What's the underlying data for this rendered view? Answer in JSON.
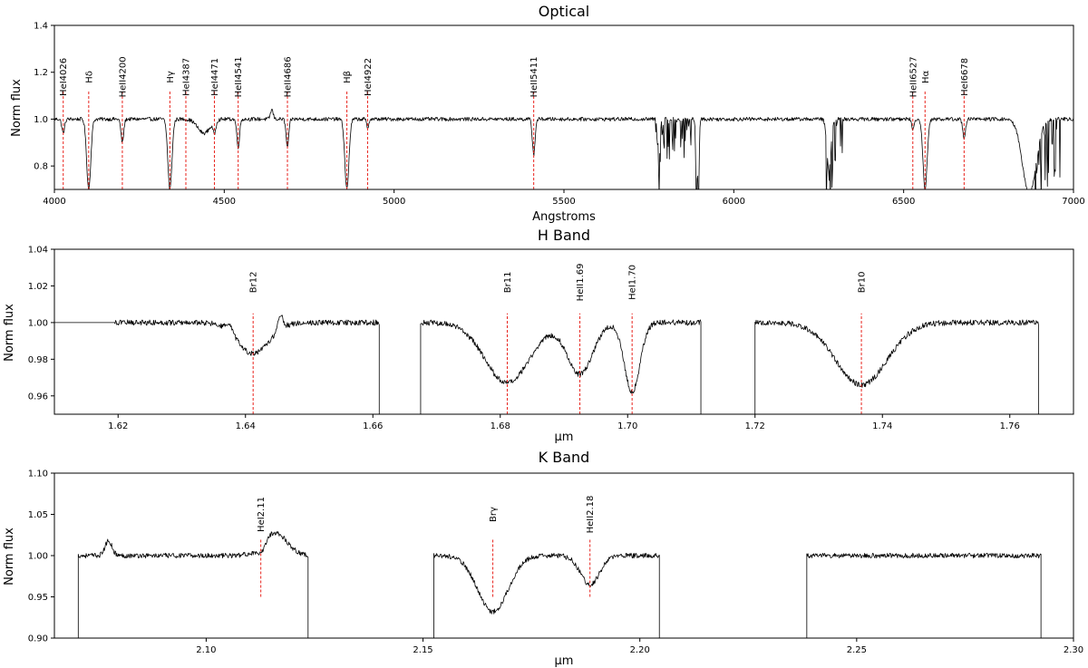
{
  "chart_data": [
    {
      "type": "line",
      "title": "Optical",
      "xlabel": "Angstroms",
      "ylabel": "Norm flux",
      "xlim": [
        4000,
        7000
      ],
      "ylim": [
        0.7,
        1.4
      ],
      "xticks": [
        4000,
        4500,
        5000,
        5500,
        6000,
        6500,
        7000
      ],
      "xtick_labels": [
        "4000",
        "4500",
        "5000",
        "5500",
        "6000",
        "6500",
        "7000"
      ],
      "yticks": [
        0.8,
        1.0,
        1.2,
        1.4
      ],
      "ytick_labels": [
        "0.8",
        "1.0",
        "1.2",
        "1.4"
      ],
      "continuum": 1.0,
      "segments": [
        [
          4000,
          7000
        ]
      ],
      "absorption_lines": [
        {
          "x": 4026,
          "depth": 0.06,
          "width": 4
        },
        {
          "x": 4101,
          "depth": 0.3,
          "width": 6
        },
        {
          "x": 4200,
          "depth": 0.1,
          "width": 4
        },
        {
          "x": 4340,
          "depth": 0.3,
          "width": 6
        },
        {
          "x": 4440,
          "depth": 0.06,
          "width": 18
        },
        {
          "x": 4471,
          "depth": 0.05,
          "width": 4
        },
        {
          "x": 4541,
          "depth": 0.12,
          "width": 4
        },
        {
          "x": 4686,
          "depth": 0.12,
          "width": 4
        },
        {
          "x": 4861,
          "depth": 0.3,
          "width": 6
        },
        {
          "x": 4922,
          "depth": 0.04,
          "width": 3
        },
        {
          "x": 5411,
          "depth": 0.15,
          "width": 4
        },
        {
          "x": 5780,
          "depth": 0.18,
          "width": 3
        },
        {
          "x": 5890,
          "depth": 0.35,
          "width": 2
        },
        {
          "x": 5896,
          "depth": 0.35,
          "width": 2
        },
        {
          "x": 6280,
          "depth": 0.22,
          "width": 6
        },
        {
          "x": 6527,
          "depth": 0.05,
          "width": 3
        },
        {
          "x": 6563,
          "depth": 0.3,
          "width": 6
        },
        {
          "x": 6678,
          "depth": 0.08,
          "width": 4
        },
        {
          "x": 6870,
          "depth": 0.32,
          "width": 20
        }
      ],
      "emission_lines": [
        {
          "x": 4640,
          "height": 0.04,
          "width": 4
        }
      ],
      "noise_amplitude": 0.008,
      "telluric_regions": [
        {
          "x": [
            5770,
            5900
          ],
          "depth": 0.18
        },
        {
          "x": [
            6270,
            6320
          ],
          "depth": 0.25
        },
        {
          "x": [
            6860,
            6960
          ],
          "depth": 0.32
        }
      ],
      "reference_lines": [
        {
          "x": 4026,
          "label": "HeI4026"
        },
        {
          "x": 4101,
          "label": "Hδ"
        },
        {
          "x": 4200,
          "label": "HeII4200"
        },
        {
          "x": 4340,
          "label": "Hγ"
        },
        {
          "x": 4387,
          "label": "HeI4387"
        },
        {
          "x": 4471,
          "label": "HeI4471"
        },
        {
          "x": 4541,
          "label": "HeII4541"
        },
        {
          "x": 4686,
          "label": "HeII4686"
        },
        {
          "x": 4861,
          "label": "Hβ"
        },
        {
          "x": 4922,
          "label": "HeI4922"
        },
        {
          "x": 5411,
          "label": "HeII5411"
        },
        {
          "x": 6527,
          "label": "HeII6527"
        },
        {
          "x": 6563,
          "label": "Hα"
        },
        {
          "x": 6678,
          "label": "HeI6678"
        }
      ],
      "reference_label_y": 1.18,
      "reference_line_range": [
        0.7,
        1.12
      ],
      "color": "#000000",
      "reference_color": "#e8231d"
    },
    {
      "type": "line",
      "title": "H Band",
      "xlabel": "μm",
      "ylabel": "Norm flux",
      "xlim": [
        1.61,
        1.77
      ],
      "ylim": [
        0.95,
        1.04
      ],
      "xticks": [
        1.62,
        1.64,
        1.66,
        1.68,
        1.7,
        1.72,
        1.74,
        1.76
      ],
      "xtick_labels": [
        "1.62",
        "1.64",
        "1.66",
        "1.68",
        "1.70",
        "1.72",
        "1.74",
        "1.76"
      ],
      "yticks": [
        0.96,
        0.98,
        1.0,
        1.02,
        1.04
      ],
      "ytick_labels": [
        "0.96",
        "0.98",
        "1.00",
        "1.02",
        "1.04"
      ],
      "continuum": 1.0,
      "segments": [
        [
          1.61,
          1.661
        ],
        [
          1.6675,
          1.7115
        ],
        [
          1.72,
          1.7645
        ]
      ],
      "absorption_lines": [
        {
          "x": 1.6412,
          "depth": 0.017,
          "width": 0.0025
        },
        {
          "x": 1.6811,
          "depth": 0.033,
          "width": 0.0035
        },
        {
          "x": 1.6925,
          "depth": 0.028,
          "width": 0.002
        },
        {
          "x": 1.7007,
          "depth": 0.038,
          "width": 0.0012
        },
        {
          "x": 1.7367,
          "depth": 0.034,
          "width": 0.004
        }
      ],
      "emission_lines": [
        {
          "x": 1.6375,
          "height": 0.004,
          "width": 0.0006
        },
        {
          "x": 1.6455,
          "height": 0.008,
          "width": 0.0004
        }
      ],
      "noise_amplitude": 0.0015,
      "flat_region": [
        1.61,
        1.6195
      ],
      "reference_lines": [
        {
          "x": 1.6412,
          "label": "Br12"
        },
        {
          "x": 1.6811,
          "label": "Br11"
        },
        {
          "x": 1.6925,
          "label": "HeII1.69"
        },
        {
          "x": 1.7007,
          "label": "HeI1.70"
        },
        {
          "x": 1.7367,
          "label": "Br10"
        }
      ],
      "reference_label_y": 1.022,
      "reference_line_range": [
        0.95,
        1.005
      ],
      "color": "#000000",
      "reference_color": "#e8231d"
    },
    {
      "type": "line",
      "title": "K Band",
      "xlabel": "μm",
      "ylabel": "Norm flux",
      "xlim": [
        2.065,
        2.3
      ],
      "ylim": [
        0.9,
        1.1
      ],
      "xticks": [
        2.1,
        2.15,
        2.2,
        2.25,
        2.3
      ],
      "xtick_labels": [
        "2.10",
        "2.15",
        "2.20",
        "2.25",
        "2.30"
      ],
      "yticks": [
        0.9,
        0.95,
        1.0,
        1.05,
        1.1
      ],
      "ytick_labels": [
        "0.90",
        "0.95",
        "1.00",
        "1.05",
        "1.10"
      ],
      "continuum": 1.0,
      "segments": [
        [
          2.0705,
          2.1235
        ],
        [
          2.1525,
          2.2045
        ],
        [
          2.2385,
          2.2925
        ]
      ],
      "absorption_lines": [
        {
          "x": 2.1126,
          "depth": 0.012,
          "width": 0.001
        },
        {
          "x": 2.1661,
          "depth": 0.068,
          "width": 0.0035
        },
        {
          "x": 2.1885,
          "depth": 0.035,
          "width": 0.0022
        }
      ],
      "emission_lines": [
        {
          "x": 2.0775,
          "height": 0.018,
          "width": 0.0008
        },
        {
          "x": 2.1158,
          "height": 0.028,
          "width": 0.0028
        }
      ],
      "noise_amplitude": 0.003,
      "reference_lines": [
        {
          "x": 2.1126,
          "label": "HeI2.11"
        },
        {
          "x": 2.1661,
          "label": "Brγ"
        },
        {
          "x": 2.1885,
          "label": "HeII2.18"
        }
      ],
      "reference_label_y": 1.05,
      "reference_line_range": [
        0.95,
        1.02
      ],
      "color": "#000000",
      "reference_color": "#e8231d"
    }
  ]
}
